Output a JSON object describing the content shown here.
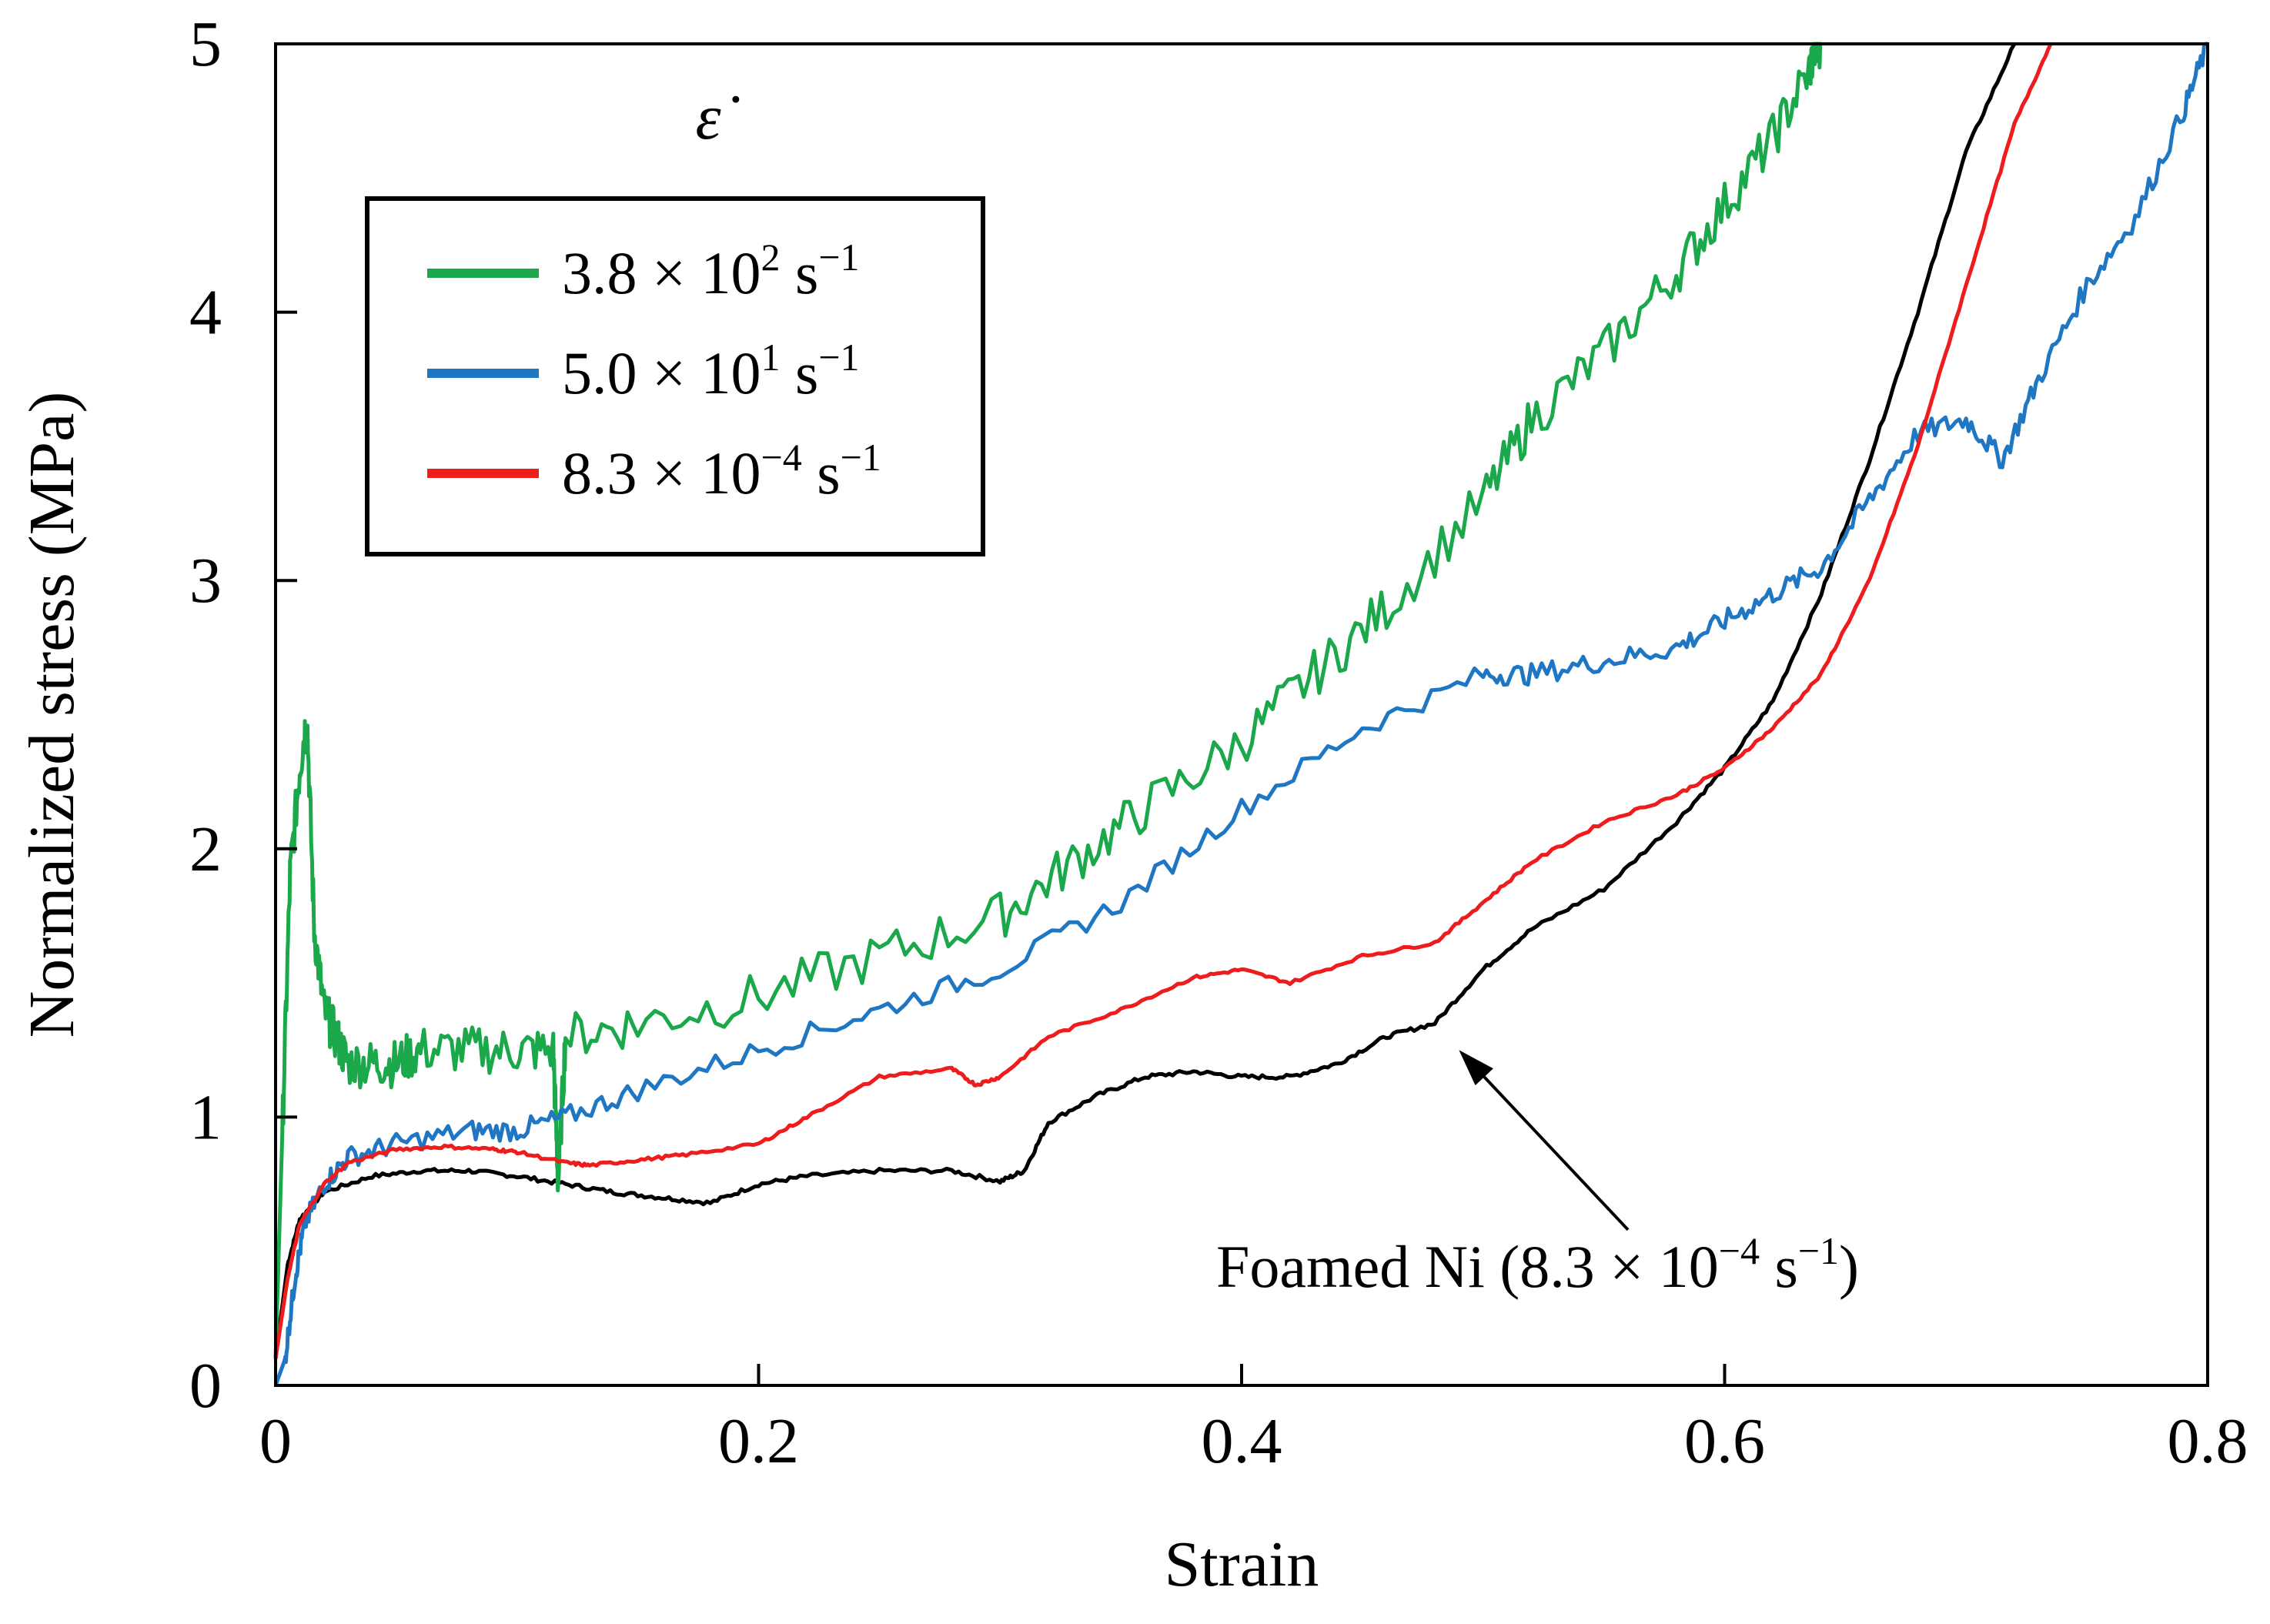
{
  "chart_data": {
    "type": "line",
    "title": "",
    "xlabel": "Strain",
    "ylabel": "Normalized stress (MPa)",
    "xlim": [
      0,
      0.8
    ],
    "ylim": [
      0,
      5
    ],
    "xticks": [
      0,
      0.2,
      0.4,
      0.6,
      0.8
    ],
    "xtick_labels": [
      "0",
      "0.2",
      "0.4",
      "0.6",
      "0.8"
    ],
    "yticks": [
      0,
      1,
      2,
      3,
      4,
      5
    ],
    "ytick_labels": [
      "0",
      "1",
      "2",
      "3",
      "4",
      "5"
    ],
    "grid": false,
    "legend_title": "ε̇",
    "legend_position": "top-left",
    "series": [
      {
        "name": "3.8 × 10² s⁻¹",
        "label_main": "3.8 × 10",
        "label_exp": "2",
        "label_unit": " s",
        "label_unit_exp": "−1",
        "color": "#1aa84a",
        "noise": 0.09,
        "x": [
          0,
          0.003,
          0.006,
          0.01,
          0.013,
          0.016,
          0.02,
          0.025,
          0.03,
          0.04,
          0.05,
          0.06,
          0.08,
          0.1,
          0.115,
          0.117,
          0.12,
          0.15,
          0.2,
          0.25,
          0.3,
          0.33,
          0.36,
          0.4,
          0.43,
          0.46,
          0.5,
          0.52,
          0.55,
          0.58,
          0.6,
          0.62,
          0.635,
          0.638,
          0.64
        ],
        "y": [
          0.1,
          1.0,
          1.9,
          2.3,
          2.5,
          1.7,
          1.4,
          1.3,
          1.2,
          1.2,
          1.2,
          1.25,
          1.25,
          1.25,
          1.25,
          0.75,
          1.3,
          1.35,
          1.45,
          1.6,
          1.75,
          1.95,
          2.15,
          2.4,
          2.65,
          2.9,
          3.3,
          3.6,
          3.85,
          4.15,
          4.4,
          4.65,
          4.9,
          5.0,
          5.0
        ]
      },
      {
        "name": "5.0 × 10¹ s⁻¹",
        "label_main": "5.0 × 10",
        "label_exp": "1",
        "label_unit": " s",
        "label_unit_exp": "−1",
        "color": "#1f77c4",
        "noise": 0.04,
        "x": [
          0,
          0.004,
          0.008,
          0.012,
          0.02,
          0.03,
          0.05,
          0.08,
          0.1,
          0.12,
          0.15,
          0.2,
          0.25,
          0.3,
          0.35,
          0.4,
          0.45,
          0.5,
          0.52,
          0.55,
          0.58,
          0.6,
          0.62,
          0.64,
          0.66,
          0.68,
          0.7,
          0.715,
          0.73,
          0.75,
          0.77,
          0.79,
          0.8
        ],
        "y": [
          0.0,
          0.1,
          0.4,
          0.6,
          0.75,
          0.85,
          0.9,
          0.95,
          0.95,
          1.0,
          1.1,
          1.25,
          1.4,
          1.55,
          1.8,
          2.15,
          2.45,
          2.65,
          2.65,
          2.7,
          2.75,
          2.85,
          2.95,
          3.05,
          3.3,
          3.55,
          3.6,
          3.45,
          3.75,
          4.1,
          4.35,
          4.75,
          5.0
        ]
      },
      {
        "name": "8.3 × 10⁻⁴ s⁻¹",
        "label_main": "8.3 × 10",
        "label_exp": "−4",
        "label_unit": " s",
        "label_unit_exp": "−1",
        "color": "#ee1c1c",
        "noise": 0.006,
        "x": [
          0,
          0.005,
          0.01,
          0.02,
          0.03,
          0.05,
          0.07,
          0.09,
          0.1,
          0.12,
          0.13,
          0.15,
          0.17,
          0.2,
          0.22,
          0.25,
          0.28,
          0.29,
          0.3,
          0.32,
          0.35,
          0.38,
          0.4,
          0.42,
          0.45,
          0.48,
          0.5,
          0.52,
          0.55,
          0.58,
          0.6,
          0.62,
          0.64,
          0.66,
          0.68,
          0.7,
          0.72,
          0.735
        ],
        "y": [
          0.1,
          0.4,
          0.6,
          0.75,
          0.83,
          0.88,
          0.89,
          0.88,
          0.87,
          0.83,
          0.82,
          0.84,
          0.86,
          0.9,
          1.0,
          1.15,
          1.18,
          1.12,
          1.15,
          1.3,
          1.4,
          1.52,
          1.55,
          1.5,
          1.6,
          1.65,
          1.8,
          1.95,
          2.1,
          2.2,
          2.3,
          2.45,
          2.65,
          3.0,
          3.5,
          4.1,
          4.7,
          5.0
        ]
      }
    ],
    "reference_series": {
      "name": "Foamed Ni (8.3 × 10⁻⁴ s⁻¹)",
      "color": "#000000",
      "noise": 0.008,
      "x": [
        0,
        0.005,
        0.01,
        0.02,
        0.04,
        0.06,
        0.08,
        0.1,
        0.12,
        0.14,
        0.16,
        0.18,
        0.2,
        0.22,
        0.25,
        0.28,
        0.3,
        0.31,
        0.32,
        0.34,
        0.36,
        0.38,
        0.4,
        0.42,
        0.44,
        0.46,
        0.48,
        0.5,
        0.52,
        0.55,
        0.58,
        0.6,
        0.62,
        0.64,
        0.66,
        0.68,
        0.7,
        0.72
      ],
      "y": [
        0.1,
        0.45,
        0.62,
        0.72,
        0.78,
        0.8,
        0.8,
        0.78,
        0.75,
        0.72,
        0.7,
        0.68,
        0.75,
        0.78,
        0.8,
        0.8,
        0.76,
        0.8,
        0.98,
        1.08,
        1.15,
        1.17,
        1.15,
        1.15,
        1.2,
        1.3,
        1.35,
        1.55,
        1.7,
        1.85,
        2.1,
        2.3,
        2.55,
        2.95,
        3.45,
        4.0,
        4.6,
        5.0
      ]
    },
    "annotation": {
      "text_main": "Foamed Ni (8.3 × 10",
      "text_exp": "−4",
      "text_unit": " s",
      "text_unit_exp": "−1",
      "text_close": ")",
      "arrow_from": [
        0.56,
        0.58
      ],
      "arrow_to": [
        0.49,
        1.25
      ]
    }
  }
}
